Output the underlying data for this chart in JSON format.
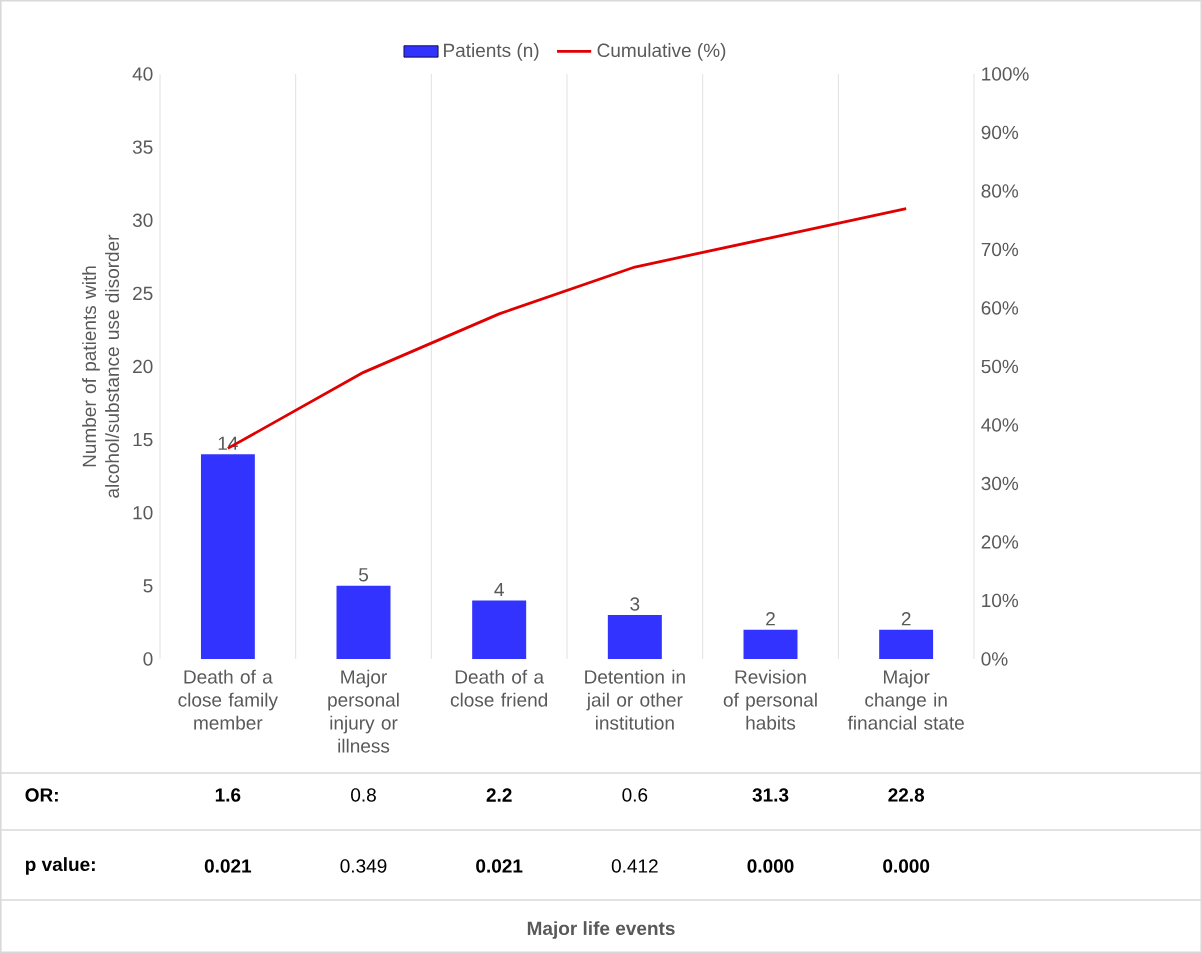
{
  "chart_data": {
    "type": "bar",
    "ylabel": "Number of patients with alcohol/substance use disorder",
    "categories": [
      "Death of a close family member",
      "Major personal injury or illness",
      "Death of a close friend",
      "Detention in jail or other institution",
      "Revision of personal habits",
      "Major change in financial state"
    ],
    "series": [
      {
        "name": "Patients (n)",
        "color": "#3333ff",
        "values": [
          14,
          5,
          4,
          3,
          2,
          2
        ],
        "value_labels": [
          "14",
          "5",
          "4",
          "3",
          "2",
          "2"
        ]
      },
      {
        "name": "Cumulative (%)",
        "type": "line",
        "axis": "y2",
        "color": "#e00000",
        "values": [
          36,
          49,
          59,
          67,
          72,
          77
        ]
      }
    ],
    "ylim": [
      0,
      40
    ],
    "yticks": [
      0,
      5,
      10,
      15,
      20,
      25,
      30,
      35,
      40
    ],
    "y2lim": [
      0,
      100
    ],
    "y2ticks": [
      {
        "value": 0,
        "label": "0%"
      },
      {
        "value": 10,
        "label": "10%"
      },
      {
        "value": 20,
        "label": "20%"
      },
      {
        "value": 30,
        "label": "30%"
      },
      {
        "value": 40,
        "label": "40%"
      },
      {
        "value": 50,
        "label": "50%"
      },
      {
        "value": 60,
        "label": "60%"
      },
      {
        "value": 70,
        "label": "70%"
      },
      {
        "value": 80,
        "label": "80%"
      },
      {
        "value": 90,
        "label": "90%"
      },
      {
        "value": 100,
        "label": "100%"
      }
    ],
    "grid": "x",
    "legend": "top",
    "annotations": [
      "**OR:**",
      "**1.6**",
      "0.8",
      "**2.2**",
      "0.6",
      "**31.3**",
      "**22.8**",
      "**p value:**",
      "**0.021**",
      "0.349",
      "**0.021**",
      "0.412",
      "**0.000**",
      "**0.000**",
      "**Major life events**"
    ]
  }
}
